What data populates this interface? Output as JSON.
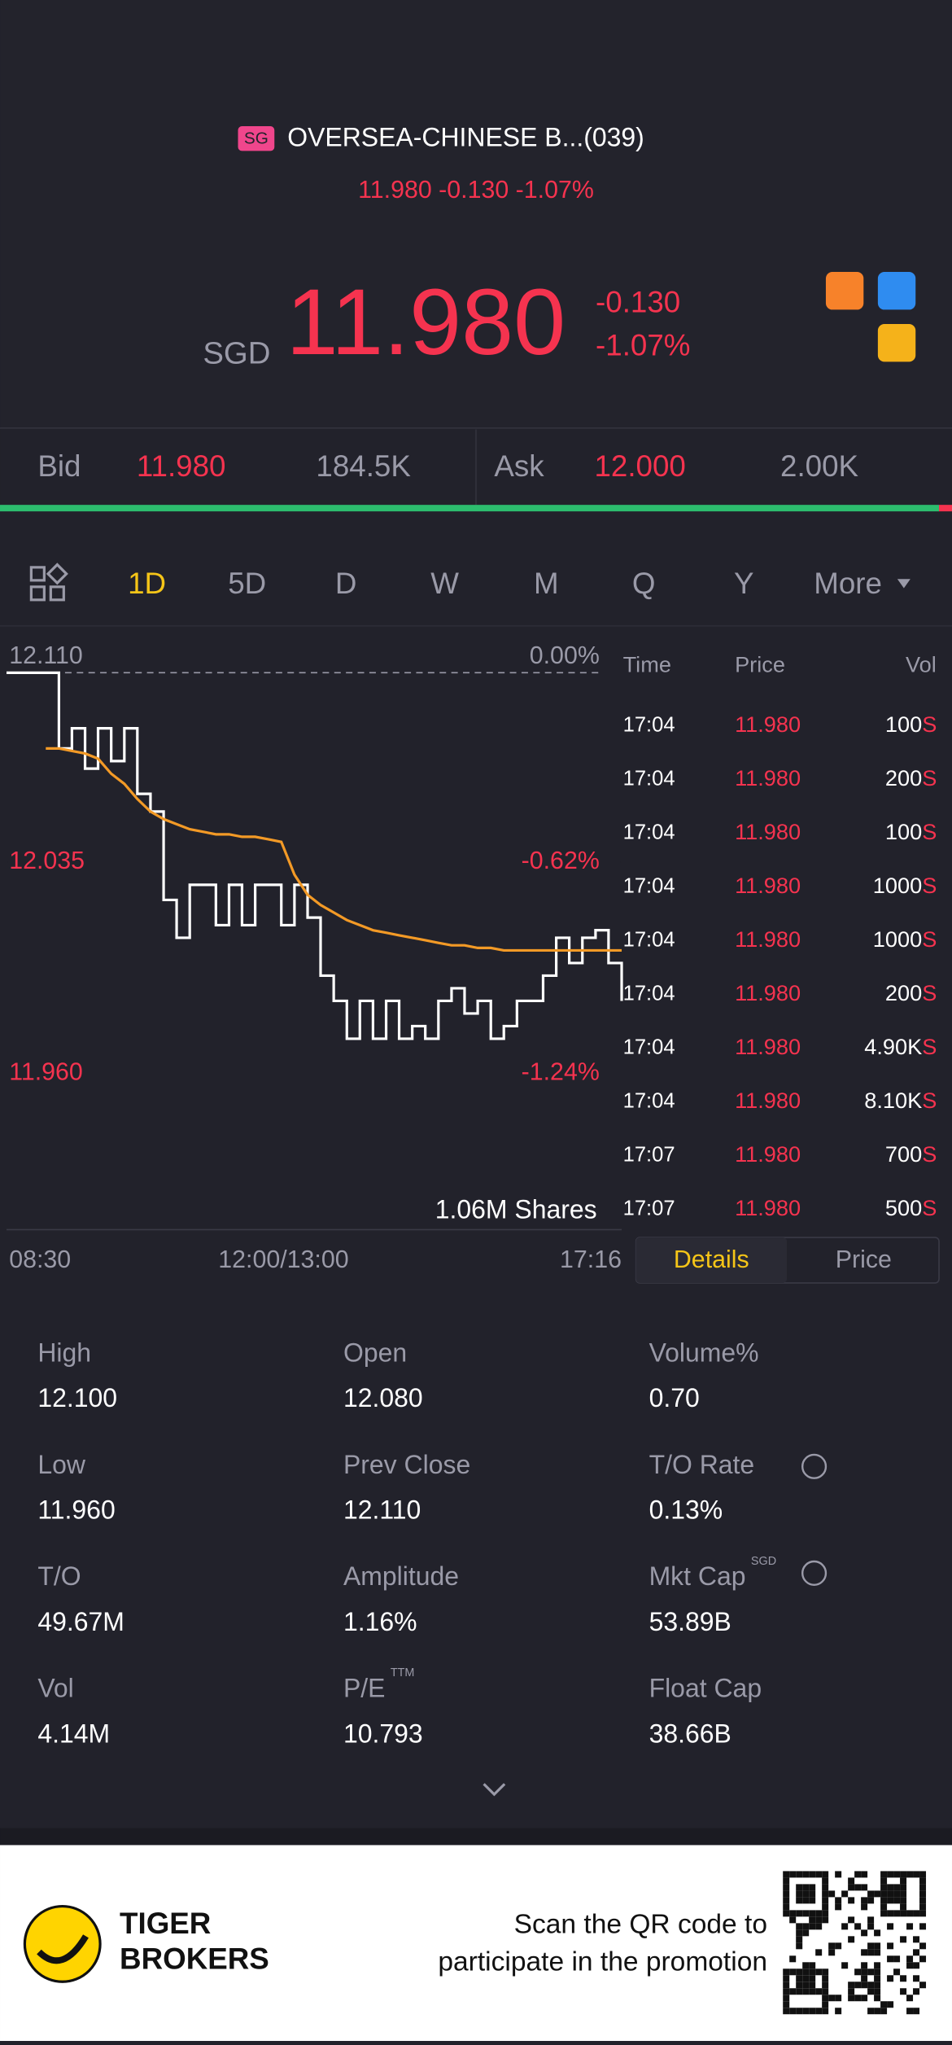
{
  "header": {
    "exchange": "SG",
    "name": "OVERSEA-CHINESE B...(039)",
    "quote_line": "11.980 -0.130 -1.07%"
  },
  "quote": {
    "currency": "SGD",
    "price": "11.980",
    "change": "-0.130",
    "change_pct": "-1.07%"
  },
  "bid_ask": {
    "bid_label": "Bid",
    "bid_price": "11.980",
    "bid_size": "184.5K",
    "ask_label": "Ask",
    "ask_price": "12.000",
    "ask_size": "2.00K"
  },
  "tabs": [
    "1D",
    "5D",
    "D",
    "W",
    "M",
    "Q",
    "Y",
    "More"
  ],
  "chart_data": {
    "type": "line",
    "ylim": [
      11.96,
      12.11
    ],
    "yticks": [
      {
        "value": 12.11,
        "label": "12.110"
      },
      {
        "value": 12.035,
        "label": "12.035"
      },
      {
        "value": 11.96,
        "label": "11.960"
      }
    ],
    "y2lim": [
      -1.24,
      0
    ],
    "y2ticks": [
      {
        "value": 0,
        "label": "0.00%"
      },
      {
        "value": -0.62,
        "label": "-0.62%"
      },
      {
        "value": -1.24,
        "label": "-1.24%"
      }
    ],
    "xlabels": [
      "08:30",
      "12:00/13:00",
      "17:16"
    ],
    "volume_label": "1.06M Shares",
    "series": [
      {
        "color": "#ffffff",
        "values": [
          12.11,
          12.11,
          12.11,
          12.11,
          12.08,
          12.088,
          12.072,
          12.088,
          12.075,
          12.088,
          12.062,
          12.055,
          12.02,
          12.005,
          12.026,
          12.026,
          12.01,
          12.026,
          12.01,
          12.026,
          12.026,
          12.01,
          12.026,
          12.013,
          11.99,
          11.98,
          11.965,
          11.98,
          11.965,
          11.98,
          11.965,
          11.97,
          11.965,
          11.98,
          11.985,
          11.975,
          11.98,
          11.965,
          11.97,
          11.98,
          11.98,
          11.99,
          12.005,
          11.995,
          12.005,
          12.008,
          11.995,
          11.98
        ]
      },
      {
        "color": "#f39a26",
        "values": [
          null,
          null,
          null,
          12.08,
          12.08,
          12.079,
          12.078,
          12.076,
          12.07,
          12.066,
          12.06,
          12.055,
          12.052,
          12.05,
          12.048,
          12.047,
          12.046,
          12.046,
          12.045,
          12.045,
          12.044,
          12.043,
          12.03,
          12.022,
          12.018,
          12.015,
          12.012,
          12.01,
          12.008,
          12.007,
          12.006,
          12.005,
          12.004,
          12.003,
          12.002,
          12.002,
          12.001,
          12.001,
          12.0,
          12.0,
          12.0,
          12.0,
          12.0,
          12.0,
          12.0,
          12.0,
          12.0,
          12.0
        ]
      }
    ]
  },
  "trades": {
    "headers": [
      "Time",
      "Price",
      "Vol"
    ],
    "rows": [
      [
        "17:04",
        "11.980",
        "100",
        "S"
      ],
      [
        "17:04",
        "11.980",
        "200",
        "S"
      ],
      [
        "17:04",
        "11.980",
        "100",
        "S"
      ],
      [
        "17:04",
        "11.980",
        "1000",
        "S"
      ],
      [
        "17:04",
        "11.980",
        "1000",
        "S"
      ],
      [
        "17:04",
        "11.980",
        "200",
        "S"
      ],
      [
        "17:04",
        "11.980",
        "4.90K",
        "S"
      ],
      [
        "17:04",
        "11.980",
        "8.10K",
        "S"
      ],
      [
        "17:07",
        "11.980",
        "700",
        "S"
      ],
      [
        "17:07",
        "11.980",
        "500",
        "S"
      ]
    ]
  },
  "detail_tabs": [
    "Details",
    "Price"
  ],
  "stats": [
    {
      "label": "High",
      "value": "12.100"
    },
    {
      "label": "Open",
      "value": "12.080"
    },
    {
      "label": "Volume%",
      "value": "0.70"
    },
    {
      "label": "Low",
      "value": "11.960"
    },
    {
      "label": "Prev Close",
      "value": "12.110"
    },
    {
      "label": "T/O Rate",
      "value": "0.13%"
    },
    {
      "label": "T/O",
      "value": "49.67M"
    },
    {
      "label": "Amplitude",
      "value": "1.16%"
    },
    {
      "label": "Mkt Cap",
      "value": "53.89B",
      "sup": "SGD"
    },
    {
      "label": "Vol",
      "value": "4.14M"
    },
    {
      "label": "P/E",
      "value": "10.793",
      "sup": "TTM"
    },
    {
      "label": "Float Cap",
      "value": "38.66B"
    }
  ],
  "footer": {
    "brand_line1": "TIGER",
    "brand_line2": "BROKERS",
    "promo_line1": "Scan the QR code to",
    "promo_line2": "participate in the promotion"
  }
}
